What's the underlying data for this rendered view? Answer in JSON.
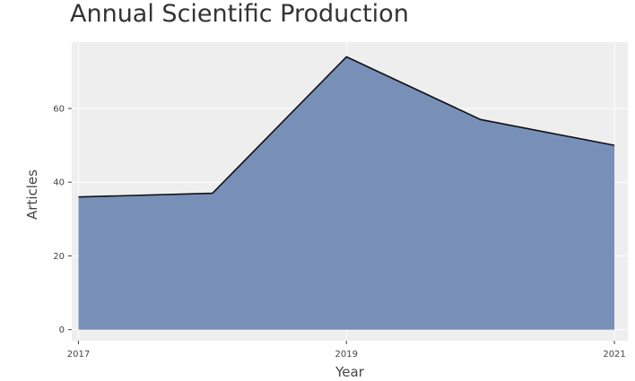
{
  "chart_data": {
    "type": "area",
    "title": "Annual Scientific Production",
    "xlabel": "Year",
    "ylabel": "Articles",
    "x": [
      2017,
      2018,
      2019,
      2020,
      2021
    ],
    "series": [
      {
        "values": [
          36,
          37,
          74,
          57,
          50
        ]
      }
    ],
    "xticks": [
      "2017",
      "2019",
      "2021"
    ],
    "yticks": [
      "0",
      "20",
      "40",
      "60"
    ],
    "xlim": [
      2016.95,
      2021.1
    ],
    "ylim": [
      -3,
      78
    ],
    "grid": true,
    "legend": "none",
    "colors": {
      "fill": "#7890b8",
      "line": "#111111",
      "panel": "#eeeeee",
      "grid": "#ffffff"
    }
  }
}
